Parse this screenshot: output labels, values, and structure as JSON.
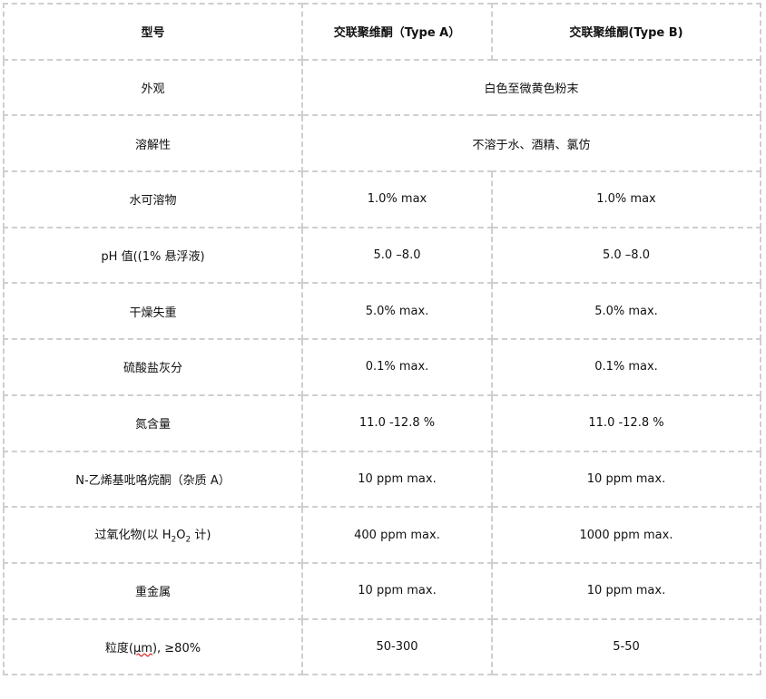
{
  "header": [
    "型号",
    "交联聚维酮（Type A）",
    "交联聚维酮(Type B)"
  ],
  "rows": [
    {
      "label": "外观",
      "merged": "白色至微黄色粉末"
    },
    {
      "label": "溶解性",
      "merged": "不溶于水、酒精、氯仿"
    },
    {
      "label": "水可溶物",
      "a": "1.0% max",
      "b": "1.0% max"
    },
    {
      "label": "pH 值((1%  悬浮液)",
      "a": "5.0  –8.0",
      "b": "5.0  –8.0"
    },
    {
      "label": "干燥失重",
      "a": "5.0% max.",
      "b": "5.0% max."
    },
    {
      "label": "硫酸盐灰分",
      "a": "0.1% max.",
      "b": "0.1% max."
    },
    {
      "label": "氮含量",
      "a": "11.0 -12.8 %",
      "b": "11.0 -12.8 %"
    },
    {
      "label": "N-乙烯基吡咯烷酮（杂质 A）",
      "a": "10 ppm max.",
      "b": "10 ppm max."
    },
    {
      "label_parts": [
        "过氧化物(以  H",
        "2",
        "O",
        "2",
        " 计)"
      ],
      "a": "400 ppm max.",
      "b": "1000 ppm max."
    },
    {
      "label": "重金属",
      "a": "10 ppm max.",
      "b": "10 ppm max."
    },
    {
      "label_parts": [
        "粒度(",
        "μm",
        "),  ≥80%"
      ],
      "a": "50-300",
      "b": "5-50"
    }
  ]
}
